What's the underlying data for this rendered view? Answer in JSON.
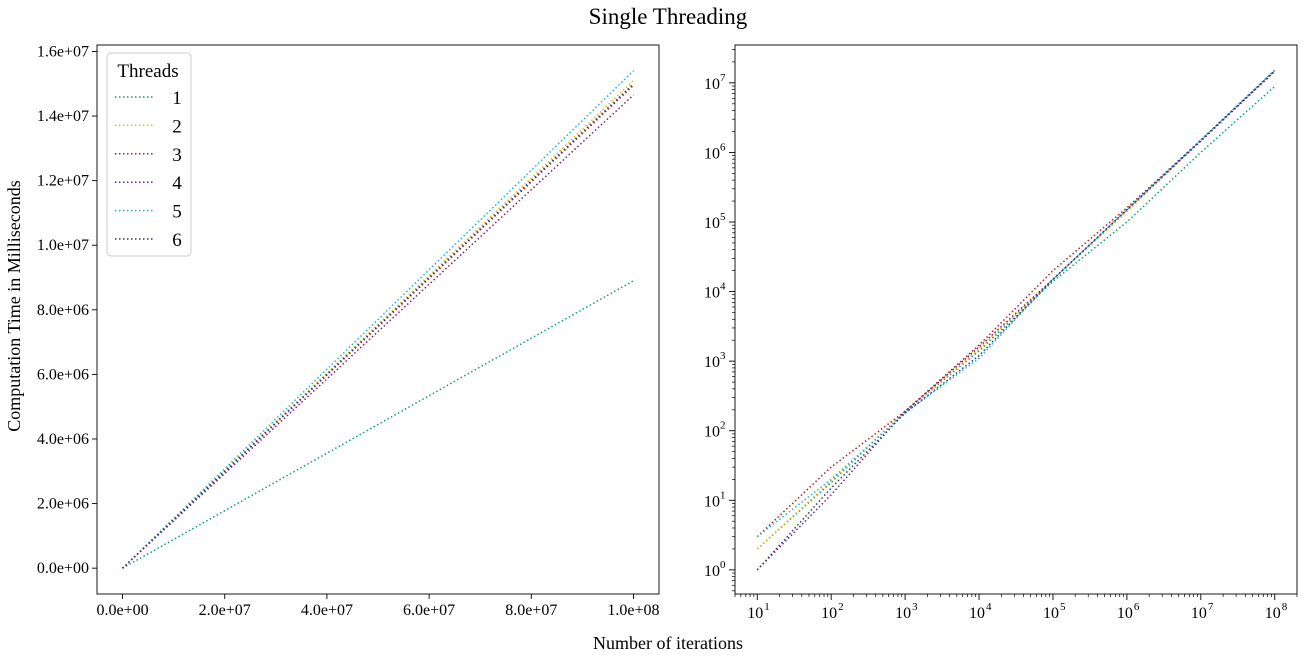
{
  "figure": {
    "title": "Single Threading",
    "xlabel": "Number of iterations",
    "ylabel": "Computation Time in Milliseconds"
  },
  "legend": {
    "title": "Threads",
    "placement": "upper-left of left panel",
    "entries": [
      "1",
      "2",
      "3",
      "4",
      "5",
      "6"
    ]
  },
  "colors": {
    "1": "#0a9e7a",
    "2": "#f0b400",
    "3": "#b0201a",
    "4": "#7a1e78",
    "5": "#19b6d6",
    "6": "#2d3a8c"
  },
  "chart_data": [
    {
      "type": "line",
      "panel": "linear",
      "line_style": "dotted",
      "xlim": [
        -5000000,
        105000000
      ],
      "ylim": [
        -800000,
        16200000
      ],
      "xticks": [
        0,
        20000000,
        40000000,
        60000000,
        80000000,
        100000000
      ],
      "xtick_labels": [
        "0.0e+00",
        "2.0e+07",
        "4.0e+07",
        "6.0e+07",
        "8.0e+07",
        "1.0e+08"
      ],
      "yticks": [
        0,
        2000000,
        4000000,
        6000000,
        8000000,
        10000000,
        12000000,
        14000000,
        16000000
      ],
      "ytick_labels": [
        "0.0e+00",
        "2.0e+06",
        "4.0e+06",
        "6.0e+06",
        "8.0e+06",
        "1.0e+07",
        "1.2e+07",
        "1.4e+07",
        "1.6e+07"
      ],
      "x": [
        0,
        100000000
      ],
      "series": [
        {
          "name": "1",
          "values": [
            0,
            8900000
          ]
        },
        {
          "name": "2",
          "values": [
            0,
            15100000
          ]
        },
        {
          "name": "3",
          "values": [
            0,
            14950000
          ]
        },
        {
          "name": "4",
          "values": [
            0,
            14650000
          ]
        },
        {
          "name": "5",
          "values": [
            0,
            15400000
          ]
        },
        {
          "name": "6",
          "values": [
            0,
            15000000
          ]
        }
      ]
    },
    {
      "type": "line",
      "panel": "log-log",
      "line_style": "dotted",
      "xscale": "log",
      "yscale": "log",
      "xlim": [
        5,
        200000000
      ],
      "ylim": [
        0.45,
        35000000
      ],
      "xtick_exponents": [
        1,
        2,
        3,
        4,
        5,
        6,
        7,
        8
      ],
      "ytick_exponents": [
        0,
        1,
        2,
        3,
        4,
        5,
        6,
        7
      ],
      "x": [
        10,
        100,
        1000,
        10000,
        100000,
        1000000,
        10000000,
        100000000
      ],
      "series": [
        {
          "name": "1",
          "values": [
            2,
            18,
            190,
            1400,
            14000,
            100000,
            1000000,
            8900000
          ]
        },
        {
          "name": "2",
          "values": [
            2,
            19,
            190,
            1500,
            15000,
            140000,
            1500000,
            15100000
          ]
        },
        {
          "name": "3",
          "values": [
            3,
            30,
            190,
            1700,
            20000,
            160000,
            1500000,
            14950000
          ]
        },
        {
          "name": "4",
          "values": [
            1,
            12,
            190,
            1600,
            15000,
            150000,
            1450000,
            14650000
          ]
        },
        {
          "name": "5",
          "values": [
            3,
            20,
            180,
            1100,
            15000,
            150000,
            1500000,
            15400000
          ]
        },
        {
          "name": "6",
          "values": [
            1,
            15,
            180,
            1200,
            15000,
            150000,
            1500000,
            15000000
          ]
        }
      ]
    }
  ]
}
